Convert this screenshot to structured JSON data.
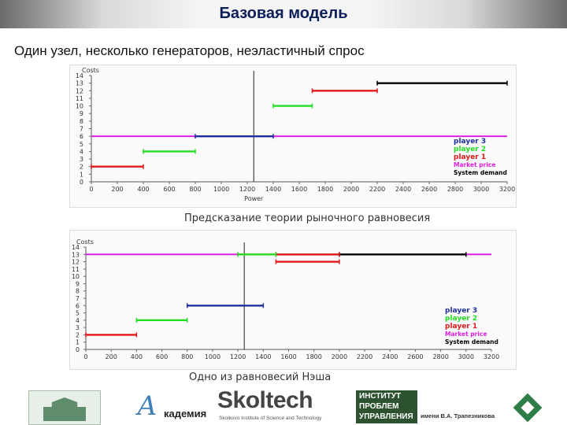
{
  "header": {
    "title": "Базовая модель"
  },
  "subtitle": "Один узел, несколько генераторов, неэластичный спрос",
  "chart_data": [
    {
      "type": "line",
      "ylabel": "Costs",
      "xlabel": "Power",
      "xlim": [
        0,
        3200
      ],
      "ylim": [
        0,
        14
      ],
      "x_ticks": [
        0,
        200,
        400,
        600,
        800,
        1000,
        1200,
        1400,
        1600,
        1800,
        2000,
        2200,
        2400,
        2600,
        2800,
        3000,
        3200
      ],
      "y_ticks": [
        0,
        1,
        2,
        3,
        4,
        5,
        6,
        7,
        8,
        9,
        10,
        11,
        12,
        13,
        14
      ],
      "demand": 1250,
      "market_price": 6,
      "series": [
        {
          "name": "player 3",
          "color": "#1f2fa0",
          "segments": [
            {
              "x0": 800,
              "x1": 1400,
              "y": 6
            }
          ]
        },
        {
          "name": "player 2",
          "color": "#22dd22",
          "segments": [
            {
              "x0": 400,
              "x1": 800,
              "y": 4
            },
            {
              "x0": 1400,
              "x1": 1700,
              "y": 10
            }
          ]
        },
        {
          "name": "player 1",
          "color": "#e01818",
          "segments": [
            {
              "x0": 0,
              "x1": 400,
              "y": 2
            },
            {
              "x0": 1700,
              "x1": 2200,
              "y": 12
            }
          ]
        },
        {
          "name": "Market price",
          "color": "#e020e0",
          "segments": [
            {
              "x0": 0,
              "x1": 3200,
              "y": 6
            }
          ]
        },
        {
          "name": "System demand",
          "color": "#000000",
          "segments": [
            {
              "x0": 2200,
              "x1": 3200,
              "y": 13
            }
          ]
        }
      ],
      "legend": "right",
      "caption": "Предсказание теории рыночного равновесия"
    },
    {
      "type": "line",
      "ylabel": "Costs",
      "xlabel": "",
      "xlim": [
        0,
        3200
      ],
      "ylim": [
        0,
        14
      ],
      "x_ticks": [
        0,
        200,
        400,
        600,
        800,
        1000,
        1200,
        1400,
        1600,
        1800,
        2000,
        2200,
        2400,
        2600,
        2800,
        3000,
        3200
      ],
      "y_ticks": [
        0,
        1,
        2,
        3,
        4,
        5,
        6,
        7,
        8,
        9,
        10,
        11,
        12,
        13,
        14
      ],
      "demand": 1250,
      "market_price": 13,
      "series": [
        {
          "name": "player 3",
          "color": "#1f2fa0",
          "segments": [
            {
              "x0": 800,
              "x1": 1400,
              "y": 6
            }
          ]
        },
        {
          "name": "player 2",
          "color": "#22dd22",
          "segments": [
            {
              "x0": 400,
              "x1": 800,
              "y": 4
            },
            {
              "x0": 1200,
              "x1": 1500,
              "y": 13
            }
          ]
        },
        {
          "name": "player 1",
          "color": "#e01818",
          "segments": [
            {
              "x0": 0,
              "x1": 400,
              "y": 2
            },
            {
              "x0": 1500,
              "x1": 2000,
              "y": 13
            },
            {
              "x0": 1500,
              "x1": 2000,
              "y": 12
            }
          ]
        },
        {
          "name": "Market price",
          "color": "#e020e0",
          "segments": [
            {
              "x0": 0,
              "x1": 3200,
              "y": 13
            }
          ]
        },
        {
          "name": "System demand",
          "color": "#000000",
          "segments": [
            {
              "x0": 2000,
              "x1": 3000,
              "y": 13
            }
          ]
        }
      ],
      "legend": "right",
      "caption": "Одно из равновесий Нэша"
    }
  ],
  "footer": {
    "akademia_mark": "А",
    "akademia_text": "кадемия",
    "skoltech_word": "Skoltech",
    "skoltech_sub": "Skolkovo Institute of Science and Technology",
    "ipu_lines": [
      "ИНСТИТУТ",
      "ПРОБЛЕМ",
      "УПРАВЛЕНИЯ"
    ],
    "ipu_name": "имени В.А. Трапезникова"
  }
}
